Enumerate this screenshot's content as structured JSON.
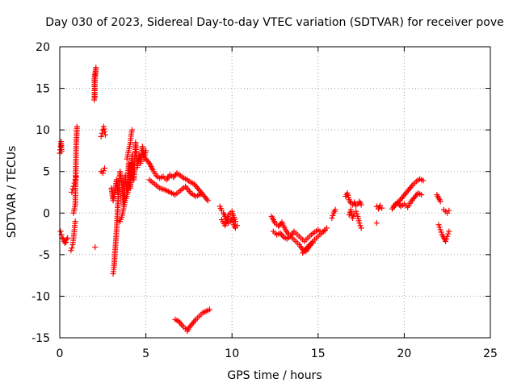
{
  "chart_data": {
    "type": "scatter",
    "title": "Day 030 of 2023, Sidereal Day-to-day VTEC variation (SDTVAR) for receiver pove",
    "xlabel": "GPS time / hours",
    "ylabel": "SDTVAR / TECUs",
    "xlim": [
      0,
      25
    ],
    "ylim": [
      -15,
      20
    ],
    "xticks": [
      0,
      5,
      10,
      15,
      20,
      25
    ],
    "yticks": [
      -15,
      -10,
      -5,
      0,
      5,
      10,
      15,
      20
    ],
    "xtick_labels": [
      "0",
      "5",
      "10",
      "15",
      "20",
      "25"
    ],
    "ytick_labels": [
      "-15",
      "-10",
      "-5",
      "0",
      "5",
      "10",
      "15",
      "20"
    ],
    "grid": true,
    "marker": "+",
    "color": "#ff0000",
    "series": [
      {
        "name": "SDTVAR",
        "segments": [
          {
            "x": [
              0.0,
              0.02,
              0.04,
              0.06,
              0.08,
              0.1
            ],
            "y": [
              7.2,
              7.6,
              8.0,
              8.3,
              8.6,
              7.4
            ]
          },
          {
            "x": [
              0.05,
              0.1,
              0.15,
              0.2,
              0.25,
              0.3,
              0.35,
              0.4,
              0.45
            ],
            "y": [
              -2.2,
              -2.6,
              -3.0,
              -3.1,
              -3.4,
              -3.6,
              -3.5,
              -3.2,
              -3.0
            ]
          },
          {
            "x": [
              0.65,
              0.7,
              0.75,
              0.8,
              0.85,
              0.9
            ],
            "y": [
              -4.5,
              -4.2,
              -3.8,
              -3.0,
              -2.0,
              -1.0
            ]
          },
          {
            "x": [
              0.7,
              0.75,
              0.8,
              0.85,
              0.9,
              0.95
            ],
            "y": [
              2.5,
              2.9,
              3.2,
              3.6,
              4.0,
              4.4
            ]
          },
          {
            "x": [
              0.8,
              0.85,
              0.9,
              0.95,
              1.0
            ],
            "y": [
              0.0,
              0.5,
              1.0,
              8.0,
              10.4
            ]
          },
          {
            "x": [
              2.0,
              2.02,
              2.04,
              2.06,
              2.08,
              2.1,
              2.0,
              2.02,
              2.04
            ],
            "y": [
              13.6,
              14.5,
              15.5,
              16.2,
              16.8,
              17.5,
              16.0,
              15.2,
              14.0
            ]
          },
          {
            "x": [
              2.05
            ],
            "y": [
              -4.1
            ]
          },
          {
            "x": [
              2.4,
              2.45,
              2.5,
              2.55,
              2.6,
              2.65
            ],
            "y": [
              9.2,
              9.6,
              10.0,
              10.4,
              9.8,
              9.4
            ]
          },
          {
            "x": [
              2.4,
              2.5,
              2.6
            ],
            "y": [
              5.0,
              4.8,
              5.4
            ]
          },
          {
            "x": [
              3.1,
              3.15,
              3.2,
              3.25,
              3.3,
              3.35,
              3.4
            ],
            "y": [
              -7.3,
              -6.5,
              -5.0,
              -3.5,
              -2.0,
              0.0,
              2.0
            ]
          },
          {
            "x": [
              3.0,
              3.1,
              3.2,
              3.3,
              3.4,
              3.5,
              3.6,
              3.7,
              3.8,
              3.9,
              4.0,
              4.1,
              4.2,
              4.3,
              4.4,
              4.5,
              4.6,
              4.7,
              4.8,
              4.9,
              5.0
            ],
            "y": [
              3.0,
              1.5,
              2.5,
              4.0,
              2.0,
              5.0,
              3.5,
              1.0,
              4.5,
              2.5,
              6.0,
              3.0,
              7.0,
              4.0,
              8.5,
              5.5,
              7.0,
              6.0,
              8.0,
              6.5,
              7.5
            ]
          },
          {
            "x": [
              3.5,
              3.6,
              3.7,
              3.8,
              3.9,
              4.0,
              4.1,
              4.2
            ],
            "y": [
              -1.0,
              -0.5,
              0.5,
              1.5,
              2.0,
              3.0,
              4.5,
              6.0
            ]
          },
          {
            "x": [
              3.9,
              4.0,
              4.1,
              4.15,
              4.2
            ],
            "y": [
              6.5,
              7.5,
              8.5,
              9.5,
              10.0
            ]
          },
          {
            "x": [
              5.0,
              5.2,
              5.4,
              5.6,
              5.8,
              6.0,
              6.2,
              6.4,
              6.6,
              6.8,
              7.0,
              7.2,
              7.4,
              7.6,
              7.8,
              8.0,
              8.2,
              8.4,
              8.6
            ],
            "y": [
              6.5,
              6.0,
              5.2,
              4.5,
              4.2,
              4.4,
              4.0,
              4.6,
              4.3,
              4.8,
              4.5,
              4.2,
              4.0,
              3.7,
              3.5,
              3.0,
              2.5,
              2.0,
              1.5
            ]
          },
          {
            "x": [
              5.2,
              5.5,
              5.8,
              6.1,
              6.4,
              6.7,
              7.0,
              7.3,
              7.6,
              7.9,
              8.2
            ],
            "y": [
              4.0,
              3.5,
              3.0,
              2.8,
              2.5,
              2.2,
              2.7,
              3.2,
              2.4,
              2.0,
              2.3
            ]
          },
          {
            "x": [
              6.7,
              6.9,
              7.1,
              7.3,
              7.4,
              7.5,
              7.7,
              7.9,
              8.1,
              8.3,
              8.5,
              8.7
            ],
            "y": [
              -12.8,
              -13.0,
              -13.5,
              -13.9,
              -14.2,
              -13.8,
              -13.3,
              -12.8,
              -12.4,
              -12.0,
              -11.8,
              -11.6
            ]
          },
          {
            "x": [
              9.3,
              9.4,
              9.5,
              9.6,
              9.7,
              9.8,
              9.9,
              10.0,
              10.1,
              10.2,
              10.3
            ],
            "y": [
              0.8,
              0.3,
              0.0,
              -0.4,
              -0.8,
              -1.2,
              -1.0,
              -0.6,
              -1.4,
              -1.8,
              -1.5
            ]
          },
          {
            "x": [
              9.4,
              9.6,
              9.8,
              10.0,
              10.2
            ],
            "y": [
              -0.8,
              -1.5,
              -0.2,
              0.2,
              -1.0
            ]
          },
          {
            "x": [
              12.3,
              12.5,
              12.7,
              12.9,
              13.1,
              13.3,
              13.5,
              13.7,
              13.9,
              14.1,
              14.3,
              14.5,
              14.7,
              14.9,
              15.1,
              15.3,
              15.5
            ],
            "y": [
              -0.4,
              -1.2,
              -1.6,
              -1.1,
              -2.0,
              -2.6,
              -3.0,
              -3.4,
              -3.8,
              -4.4,
              -4.6,
              -4.0,
              -3.4,
              -3.0,
              -2.6,
              -2.2,
              -1.8
            ]
          },
          {
            "x": [
              12.4,
              12.6,
              12.8,
              13.0,
              13.2,
              13.4,
              13.6,
              13.8,
              14.0,
              14.2,
              14.4,
              14.6,
              14.8,
              15.0,
              15.2,
              15.4
            ],
            "y": [
              -2.2,
              -2.6,
              -2.4,
              -2.9,
              -3.1,
              -2.8,
              -2.2,
              -2.6,
              -3.0,
              -3.4,
              -3.0,
              -2.6,
              -2.3,
              -2.0,
              -2.4,
              -2.1
            ]
          },
          {
            "x": [
              14.1,
              14.3,
              14.5,
              14.7
            ],
            "y": [
              -4.8,
              -4.3,
              -3.8,
              -3.6
            ]
          },
          {
            "x": [
              15.8,
              15.9,
              16.0
            ],
            "y": [
              -0.6,
              0.0,
              0.4
            ]
          },
          {
            "x": [
              16.6,
              16.7,
              16.8,
              16.9,
              17.0,
              17.1,
              17.2,
              17.3,
              17.4,
              17.5
            ],
            "y": [
              2.0,
              2.4,
              1.6,
              1.2,
              1.0,
              1.3,
              0.9,
              1.1,
              1.4,
              1.0
            ]
          },
          {
            "x": [
              16.8,
              16.9,
              17.0,
              17.1,
              17.2,
              17.3,
              17.4,
              17.5
            ],
            "y": [
              -0.2,
              0.4,
              -0.6,
              -0.1,
              0.2,
              -0.4,
              -1.2,
              -1.8
            ]
          },
          {
            "x": [
              18.4,
              18.5,
              18.6,
              18.7
            ],
            "y": [
              0.8,
              0.5,
              0.9,
              0.6
            ]
          },
          {
            "x": [
              18.4
            ],
            "y": [
              -1.2
            ]
          },
          {
            "x": [
              19.3,
              19.5,
              19.7,
              19.9,
              20.1,
              20.3,
              20.5,
              20.7,
              20.9,
              21.1
            ],
            "y": [
              0.5,
              1.0,
              1.4,
              1.9,
              2.4,
              2.9,
              3.4,
              3.8,
              4.1,
              3.9
            ]
          },
          {
            "x": [
              19.4,
              19.6,
              19.8,
              20.0,
              20.2,
              20.4,
              20.6,
              20.8,
              21.0
            ],
            "y": [
              0.9,
              1.3,
              0.8,
              1.1,
              0.7,
              1.4,
              1.9,
              2.4,
              2.2
            ]
          },
          {
            "x": [
              21.9,
              22.0,
              22.1
            ],
            "y": [
              2.2,
              1.8,
              1.4
            ]
          },
          {
            "x": [
              22.0,
              22.1,
              22.2,
              22.3,
              22.4,
              22.5,
              22.6
            ],
            "y": [
              -1.4,
              -2.0,
              -2.6,
              -3.0,
              -3.4,
              -2.8,
              -2.2
            ]
          },
          {
            "x": [
              22.3,
              22.4,
              22.5,
              22.6
            ],
            "y": [
              0.4,
              0.2,
              0.0,
              0.3
            ]
          }
        ]
      }
    ]
  }
}
